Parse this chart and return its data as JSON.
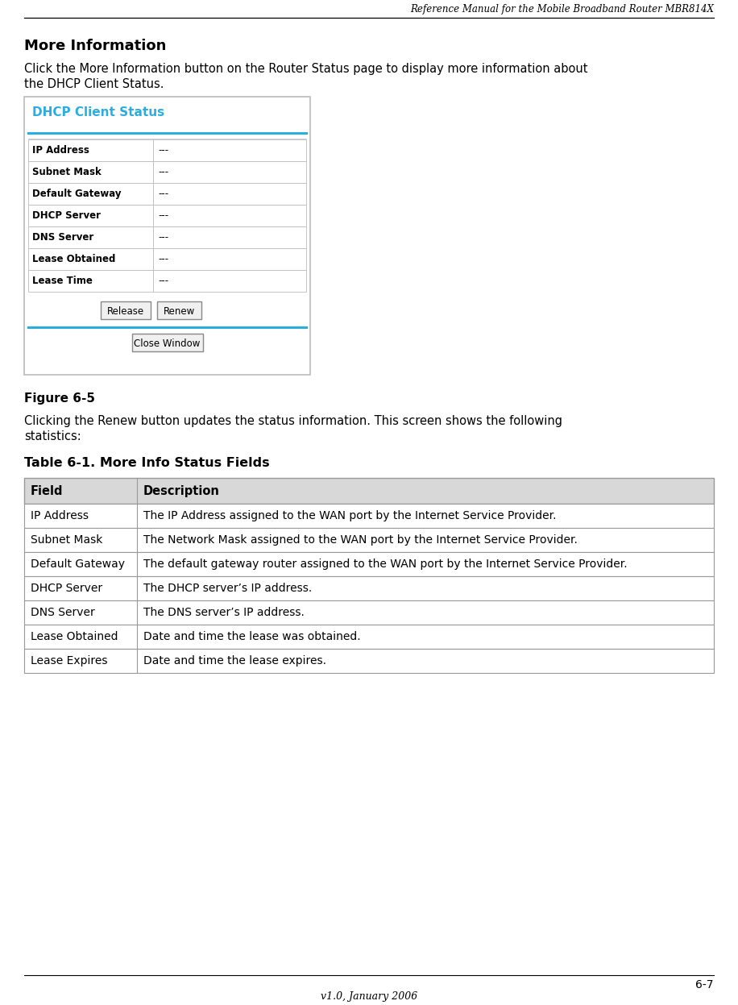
{
  "header_title": "Reference Manual for the Mobile Broadband Router MBR814X",
  "section_title": "More Information",
  "intro_line1": "Click the More Information button on the Router Status page to display more information about",
  "intro_line2": "the DHCP Client Status.",
  "dhcp_box_title": "DHCP Client Status",
  "dhcp_rows": [
    [
      "IP Address",
      "---"
    ],
    [
      "Subnet Mask",
      "---"
    ],
    [
      "Default Gateway",
      "---"
    ],
    [
      "DHCP Server",
      "---"
    ],
    [
      "DNS Server",
      "---"
    ],
    [
      "Lease Obtained",
      "---"
    ],
    [
      "Lease Time",
      "---"
    ]
  ],
  "button1": "Release",
  "button2": "Renew",
  "button3": "Close Window",
  "figure_label": "Figure 6-5",
  "renew_line1": "Clicking the Renew button updates the status information. This screen shows the following",
  "renew_line2": "statistics:",
  "table_title": "Table 6-1. More Info Status Fields",
  "table_header": [
    "Field",
    "Description"
  ],
  "table_rows": [
    [
      "IP Address",
      "The IP Address assigned to the WAN port by the Internet Service Provider."
    ],
    [
      "Subnet Mask",
      "The Network Mask assigned to the WAN port by the Internet Service Provider."
    ],
    [
      "Default Gateway",
      "The default gateway router assigned to the WAN port by the Internet Service Provider."
    ],
    [
      "DHCP Server",
      "The DHCP server’s IP address."
    ],
    [
      "DNS Server",
      "The DNS server’s IP address."
    ],
    [
      "Lease Obtained",
      "Date and time the lease was obtained."
    ],
    [
      "Lease Expires",
      "Date and time the lease expires."
    ]
  ],
  "footer_page": "6-7",
  "footer_version": "v1.0, January 2006",
  "dhcp_title_color": "#2BADE0",
  "dhcp_border_color": "#BBBBBB",
  "dhcp_line_color": "#2BADE0",
  "table_header_bg": "#D8D8D8",
  "table_border_color": "#999999",
  "bg_color": "#FFFFFF"
}
